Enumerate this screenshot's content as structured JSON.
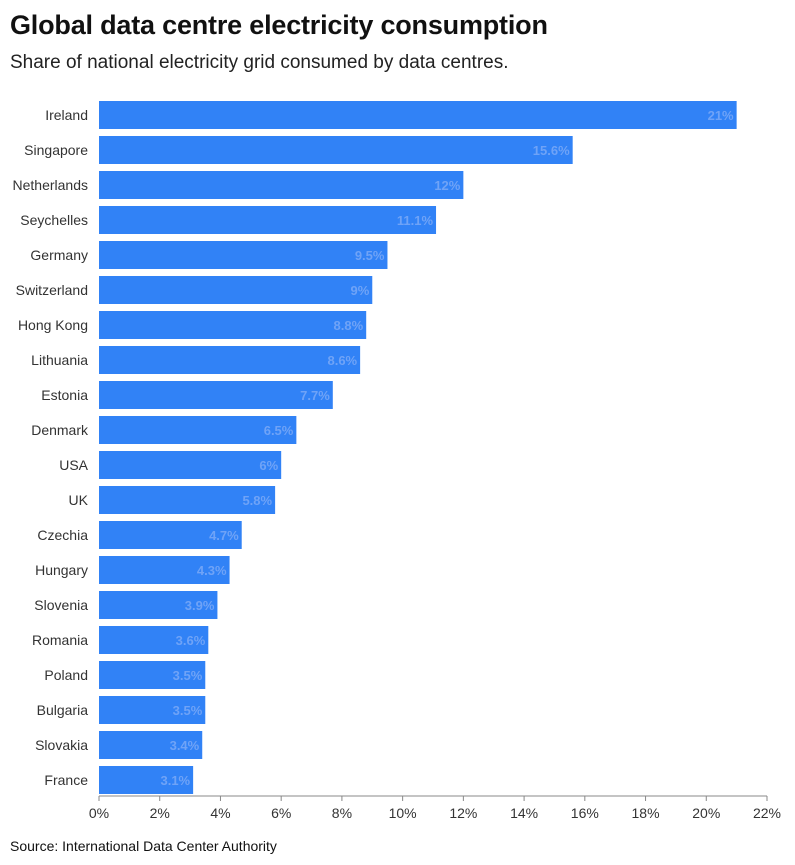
{
  "chart_data": {
    "type": "bar",
    "orientation": "horizontal",
    "title": "Global data centre electricity consumption",
    "subtitle": "Share of national electricity grid consumed by data centres.",
    "categories": [
      "Ireland",
      "Singapore",
      "Netherlands",
      "Seychelles",
      "Germany",
      "Switzerland",
      "Hong Kong",
      "Lithuania",
      "Estonia",
      "Denmark",
      "USA",
      "UK",
      "Czechia",
      "Hungary",
      "Slovenia",
      "Romania",
      "Poland",
      "Bulgaria",
      "Slovakia",
      "France"
    ],
    "values": [
      21,
      15.6,
      12,
      11.1,
      9.5,
      9,
      8.8,
      8.6,
      7.7,
      6.5,
      6,
      5.8,
      4.7,
      4.3,
      3.9,
      3.6,
      3.5,
      3.5,
      3.4,
      3.1
    ],
    "value_labels": [
      "21%",
      "15.6%",
      "12%",
      "11.1%",
      "9.5%",
      "9%",
      "8.8%",
      "8.6%",
      "7.7%",
      "6.5%",
      "6%",
      "5.8%",
      "4.7%",
      "4.3%",
      "3.9%",
      "3.6%",
      "3.5%",
      "3.5%",
      "3.4%",
      "3.1%"
    ],
    "xlim": [
      0,
      22
    ],
    "x_ticks": [
      0,
      2,
      4,
      6,
      8,
      10,
      12,
      14,
      16,
      18,
      20,
      22
    ],
    "x_tick_labels": [
      "0%",
      "2%",
      "4%",
      "6%",
      "8%",
      "10%",
      "12%",
      "14%",
      "16%",
      "18%",
      "20%",
      "22%"
    ],
    "grid": false,
    "bar_color": "#3182f6",
    "value_label_color": "#6fa3f7",
    "source": "Source: International Data Center Authority"
  }
}
